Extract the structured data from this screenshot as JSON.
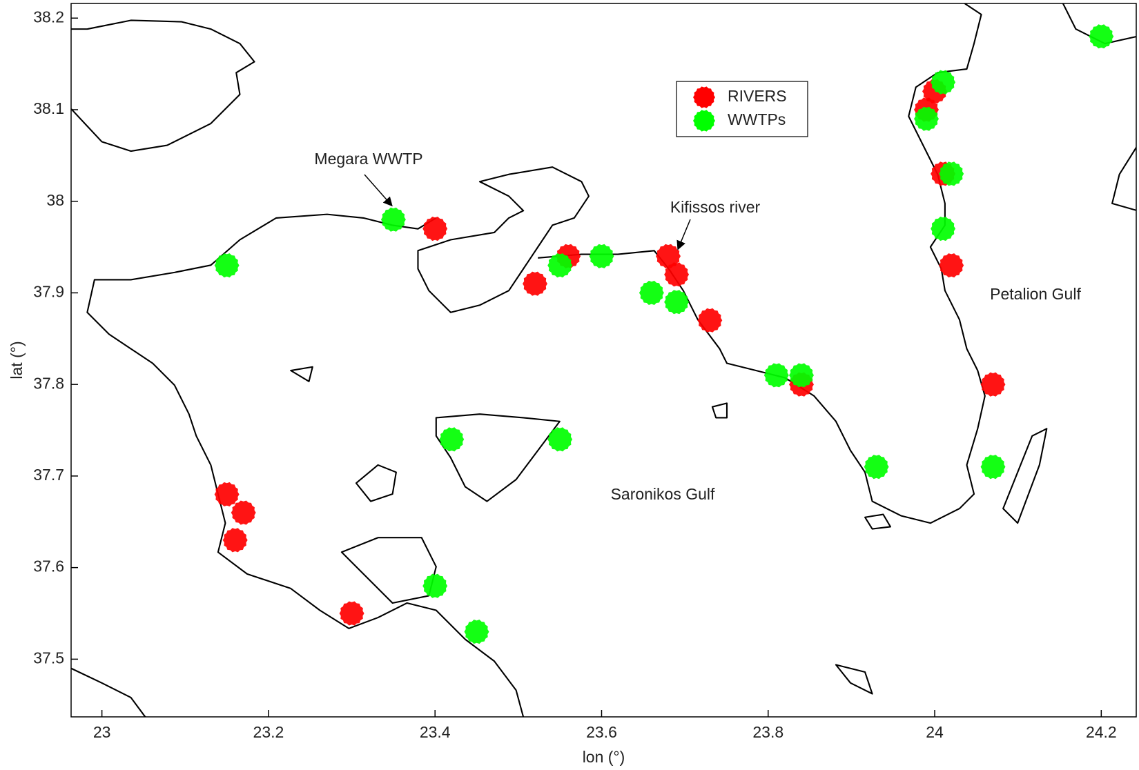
{
  "chart_data": {
    "type": "scatter",
    "xlabel": "lon (°)",
    "ylabel": "lat (°)",
    "xlim": [
      22.963,
      24.242
    ],
    "ylim": [
      37.437,
      38.216
    ],
    "xticks": [
      23,
      23.2,
      23.4,
      23.6,
      23.8,
      24,
      24.2
    ],
    "yticks": [
      37.5,
      37.6,
      37.7,
      37.8,
      37.9,
      38,
      38.1,
      38.2
    ],
    "legend": "top",
    "series": [
      {
        "name": "RIVERS",
        "color": "#ff0000",
        "x": [
          23.4,
          23.56,
          23.52,
          23.68,
          23.69,
          23.73,
          23.84,
          23.15,
          23.17,
          23.16,
          23.3,
          23.99,
          24.0,
          24.01,
          24.02,
          24.07
        ],
        "values": [
          37.97,
          37.94,
          37.91,
          37.94,
          37.92,
          37.87,
          37.8,
          37.68,
          37.66,
          37.63,
          37.55,
          38.1,
          38.12,
          38.03,
          37.93,
          37.8
        ]
      },
      {
        "name": "WWTPs",
        "color": "#00ff00",
        "x": [
          23.35,
          23.15,
          23.55,
          23.6,
          23.66,
          23.69,
          23.81,
          23.84,
          23.93,
          23.42,
          23.55,
          23.4,
          23.45,
          24.01,
          23.99,
          24.02,
          24.01,
          24.07,
          24.2
        ],
        "values": [
          37.98,
          37.93,
          37.93,
          37.94,
          37.9,
          37.89,
          37.81,
          37.81,
          37.71,
          37.74,
          37.74,
          37.58,
          37.53,
          38.13,
          38.09,
          38.03,
          37.97,
          37.71,
          38.18
        ]
      }
    ],
    "annotations": [
      {
        "text": "Megara WWTP",
        "x": 23.35,
        "y": 37.98
      },
      {
        "text": "Kifissos river",
        "x": 23.68,
        "y": 37.94
      },
      {
        "text": "Saronikos Gulf"
      },
      {
        "text": "Petalion Gulf"
      }
    ]
  }
}
